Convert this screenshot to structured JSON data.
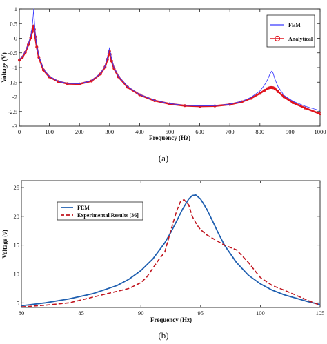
{
  "chart_data": [
    {
      "type": "line",
      "xlabel": "Frequency (Hz)",
      "ylabel": "Voltage (V)",
      "xlim": [
        0,
        1000
      ],
      "ylim": [
        -3,
        1
      ],
      "xticks": [
        "0",
        "100",
        "200",
        "300",
        "400",
        "500",
        "600",
        "700",
        "800",
        "900",
        "1000"
      ],
      "yticks": [
        "-3",
        "-2.5",
        "-2",
        "-1.5",
        "-1",
        "-0.5",
        "0",
        "0.5",
        "1"
      ],
      "grid": false,
      "legend_position": "top-right",
      "caption": "(a)",
      "series": [
        {
          "name": "FEM",
          "color": "#3a3aff",
          "x": [
            0,
            10,
            20,
            30,
            38,
            43,
            46,
            48,
            50,
            53,
            58,
            65,
            80,
            100,
            130,
            160,
            200,
            240,
            270,
            285,
            293,
            298,
            300,
            302,
            307,
            315,
            330,
            360,
            400,
            450,
            500,
            550,
            600,
            650,
            700,
            740,
            770,
            800,
            815,
            825,
            832,
            837,
            840,
            844,
            850,
            860,
            880,
            910,
            950,
            1000
          ],
          "y": [
            -0.72,
            -0.62,
            -0.45,
            -0.2,
            0.1,
            0.4,
            0.75,
            1.0,
            0.6,
            0.15,
            -0.25,
            -0.6,
            -1.05,
            -1.3,
            -1.47,
            -1.54,
            -1.55,
            -1.45,
            -1.2,
            -0.95,
            -0.65,
            -0.42,
            -0.32,
            -0.45,
            -0.72,
            -1.0,
            -1.3,
            -1.65,
            -1.92,
            -2.12,
            -2.23,
            -2.29,
            -2.31,
            -2.3,
            -2.25,
            -2.15,
            -2.02,
            -1.8,
            -1.6,
            -1.42,
            -1.25,
            -1.15,
            -1.12,
            -1.2,
            -1.4,
            -1.65,
            -1.95,
            -2.15,
            -2.32,
            -2.47
          ]
        },
        {
          "name": "Analytical",
          "color": "#e0141e",
          "x": [
            0,
            10,
            20,
            30,
            38,
            43,
            46,
            48,
            50,
            53,
            58,
            65,
            80,
            100,
            130,
            160,
            200,
            240,
            270,
            285,
            293,
            298,
            300,
            302,
            307,
            315,
            330,
            360,
            400,
            450,
            500,
            550,
            600,
            650,
            700,
            740,
            770,
            800,
            815,
            825,
            832,
            837,
            840,
            844,
            850,
            860,
            880,
            910,
            950,
            1000
          ],
          "y": [
            -0.75,
            -0.65,
            -0.48,
            -0.22,
            0.02,
            0.22,
            0.38,
            0.42,
            0.3,
            0.05,
            -0.3,
            -0.65,
            -1.08,
            -1.32,
            -1.48,
            -1.55,
            -1.56,
            -1.46,
            -1.22,
            -0.98,
            -0.72,
            -0.52,
            -0.45,
            -0.55,
            -0.78,
            -1.03,
            -1.32,
            -1.67,
            -1.93,
            -2.13,
            -2.24,
            -2.3,
            -2.32,
            -2.31,
            -2.26,
            -2.17,
            -2.05,
            -1.88,
            -1.78,
            -1.72,
            -1.69,
            -1.68,
            -1.68,
            -1.69,
            -1.72,
            -1.82,
            -2.0,
            -2.2,
            -2.38,
            -2.58
          ]
        }
      ]
    },
    {
      "type": "line",
      "xlabel": "Frequency (Hz)",
      "ylabel": "Voltage (v)",
      "xlim": [
        80,
        105
      ],
      "ylim": [
        4.2,
        26.2
      ],
      "xticks": [
        "80",
        "85",
        "90",
        "95",
        "100",
        "105"
      ],
      "yticks": [
        "5",
        "10",
        "15",
        "20",
        "25"
      ],
      "grid": false,
      "legend_position": "top-left",
      "caption": "(b)",
      "series": [
        {
          "name": "FEM",
          "color": "#1f5fb0",
          "style": "solid",
          "x": [
            80,
            82,
            84,
            86,
            88,
            89,
            90,
            91,
            92,
            92.5,
            93,
            93.5,
            94,
            94.3,
            94.6,
            95,
            95.5,
            96,
            96.5,
            97,
            98,
            99,
            100,
            101,
            102,
            103,
            104,
            105
          ],
          "y": [
            4.5,
            5.0,
            5.7,
            6.6,
            8.0,
            9.1,
            10.6,
            12.6,
            15.4,
            17.2,
            19.2,
            21.3,
            23.0,
            23.6,
            23.7,
            23.0,
            21.3,
            19.2,
            17.0,
            15.0,
            12.0,
            9.8,
            8.3,
            7.2,
            6.4,
            5.8,
            5.2,
            4.7
          ]
        },
        {
          "name": "Experimental Results [36]",
          "color": "#c0141e",
          "style": "dashed",
          "x": [
            80,
            82,
            84,
            86,
            88,
            89,
            90,
            90.5,
            91,
            91.5,
            92,
            92.5,
            93,
            93.3,
            93.6,
            94,
            94.3,
            94.7,
            95,
            95.5,
            96,
            97,
            98,
            99,
            100,
            101,
            102,
            103,
            104,
            105
          ],
          "y": [
            4.3,
            4.6,
            5.0,
            6.0,
            7.0,
            7.5,
            8.5,
            9.5,
            11.0,
            12.5,
            13.8,
            17.5,
            21.0,
            22.5,
            22.9,
            22.0,
            20.0,
            18.5,
            17.7,
            16.8,
            16.2,
            15.0,
            14.2,
            12.0,
            9.4,
            8.0,
            7.2,
            6.3,
            5.4,
            4.6
          ]
        }
      ]
    }
  ]
}
